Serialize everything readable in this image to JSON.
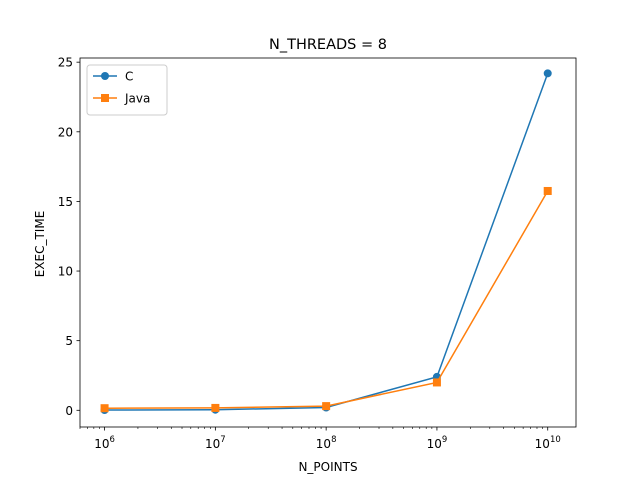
{
  "chart_data": {
    "type": "line",
    "title": "N_THREADS = 8",
    "xlabel": "N_POINTS",
    "ylabel": "EXEC_TIME",
    "xscale": "log",
    "xlim": [
      600000,
      18000000000
    ],
    "ylim": [
      -1.2,
      25.3
    ],
    "x": [
      1000000,
      10000000,
      100000000,
      1000000000,
      10000000000
    ],
    "xticks": [
      {
        "value": 1000000,
        "base": "10",
        "exp": "6"
      },
      {
        "value": 10000000,
        "base": "10",
        "exp": "7"
      },
      {
        "value": 100000000,
        "base": "10",
        "exp": "8"
      },
      {
        "value": 1000000000,
        "base": "10",
        "exp": "9"
      },
      {
        "value": 10000000000,
        "base": "10",
        "exp": "10"
      }
    ],
    "yticks": [
      0,
      5,
      10,
      15,
      20,
      25
    ],
    "grid": false,
    "legend": "top-left",
    "series": [
      {
        "name": "C",
        "values": [
          0.02,
          0.04,
          0.2,
          2.4,
          24.2
        ],
        "color": "#1f77b4",
        "marker": "circle"
      },
      {
        "name": "Java",
        "values": [
          0.15,
          0.17,
          0.3,
          2.0,
          15.75
        ],
        "color": "#ff7f0e",
        "marker": "square"
      }
    ]
  }
}
